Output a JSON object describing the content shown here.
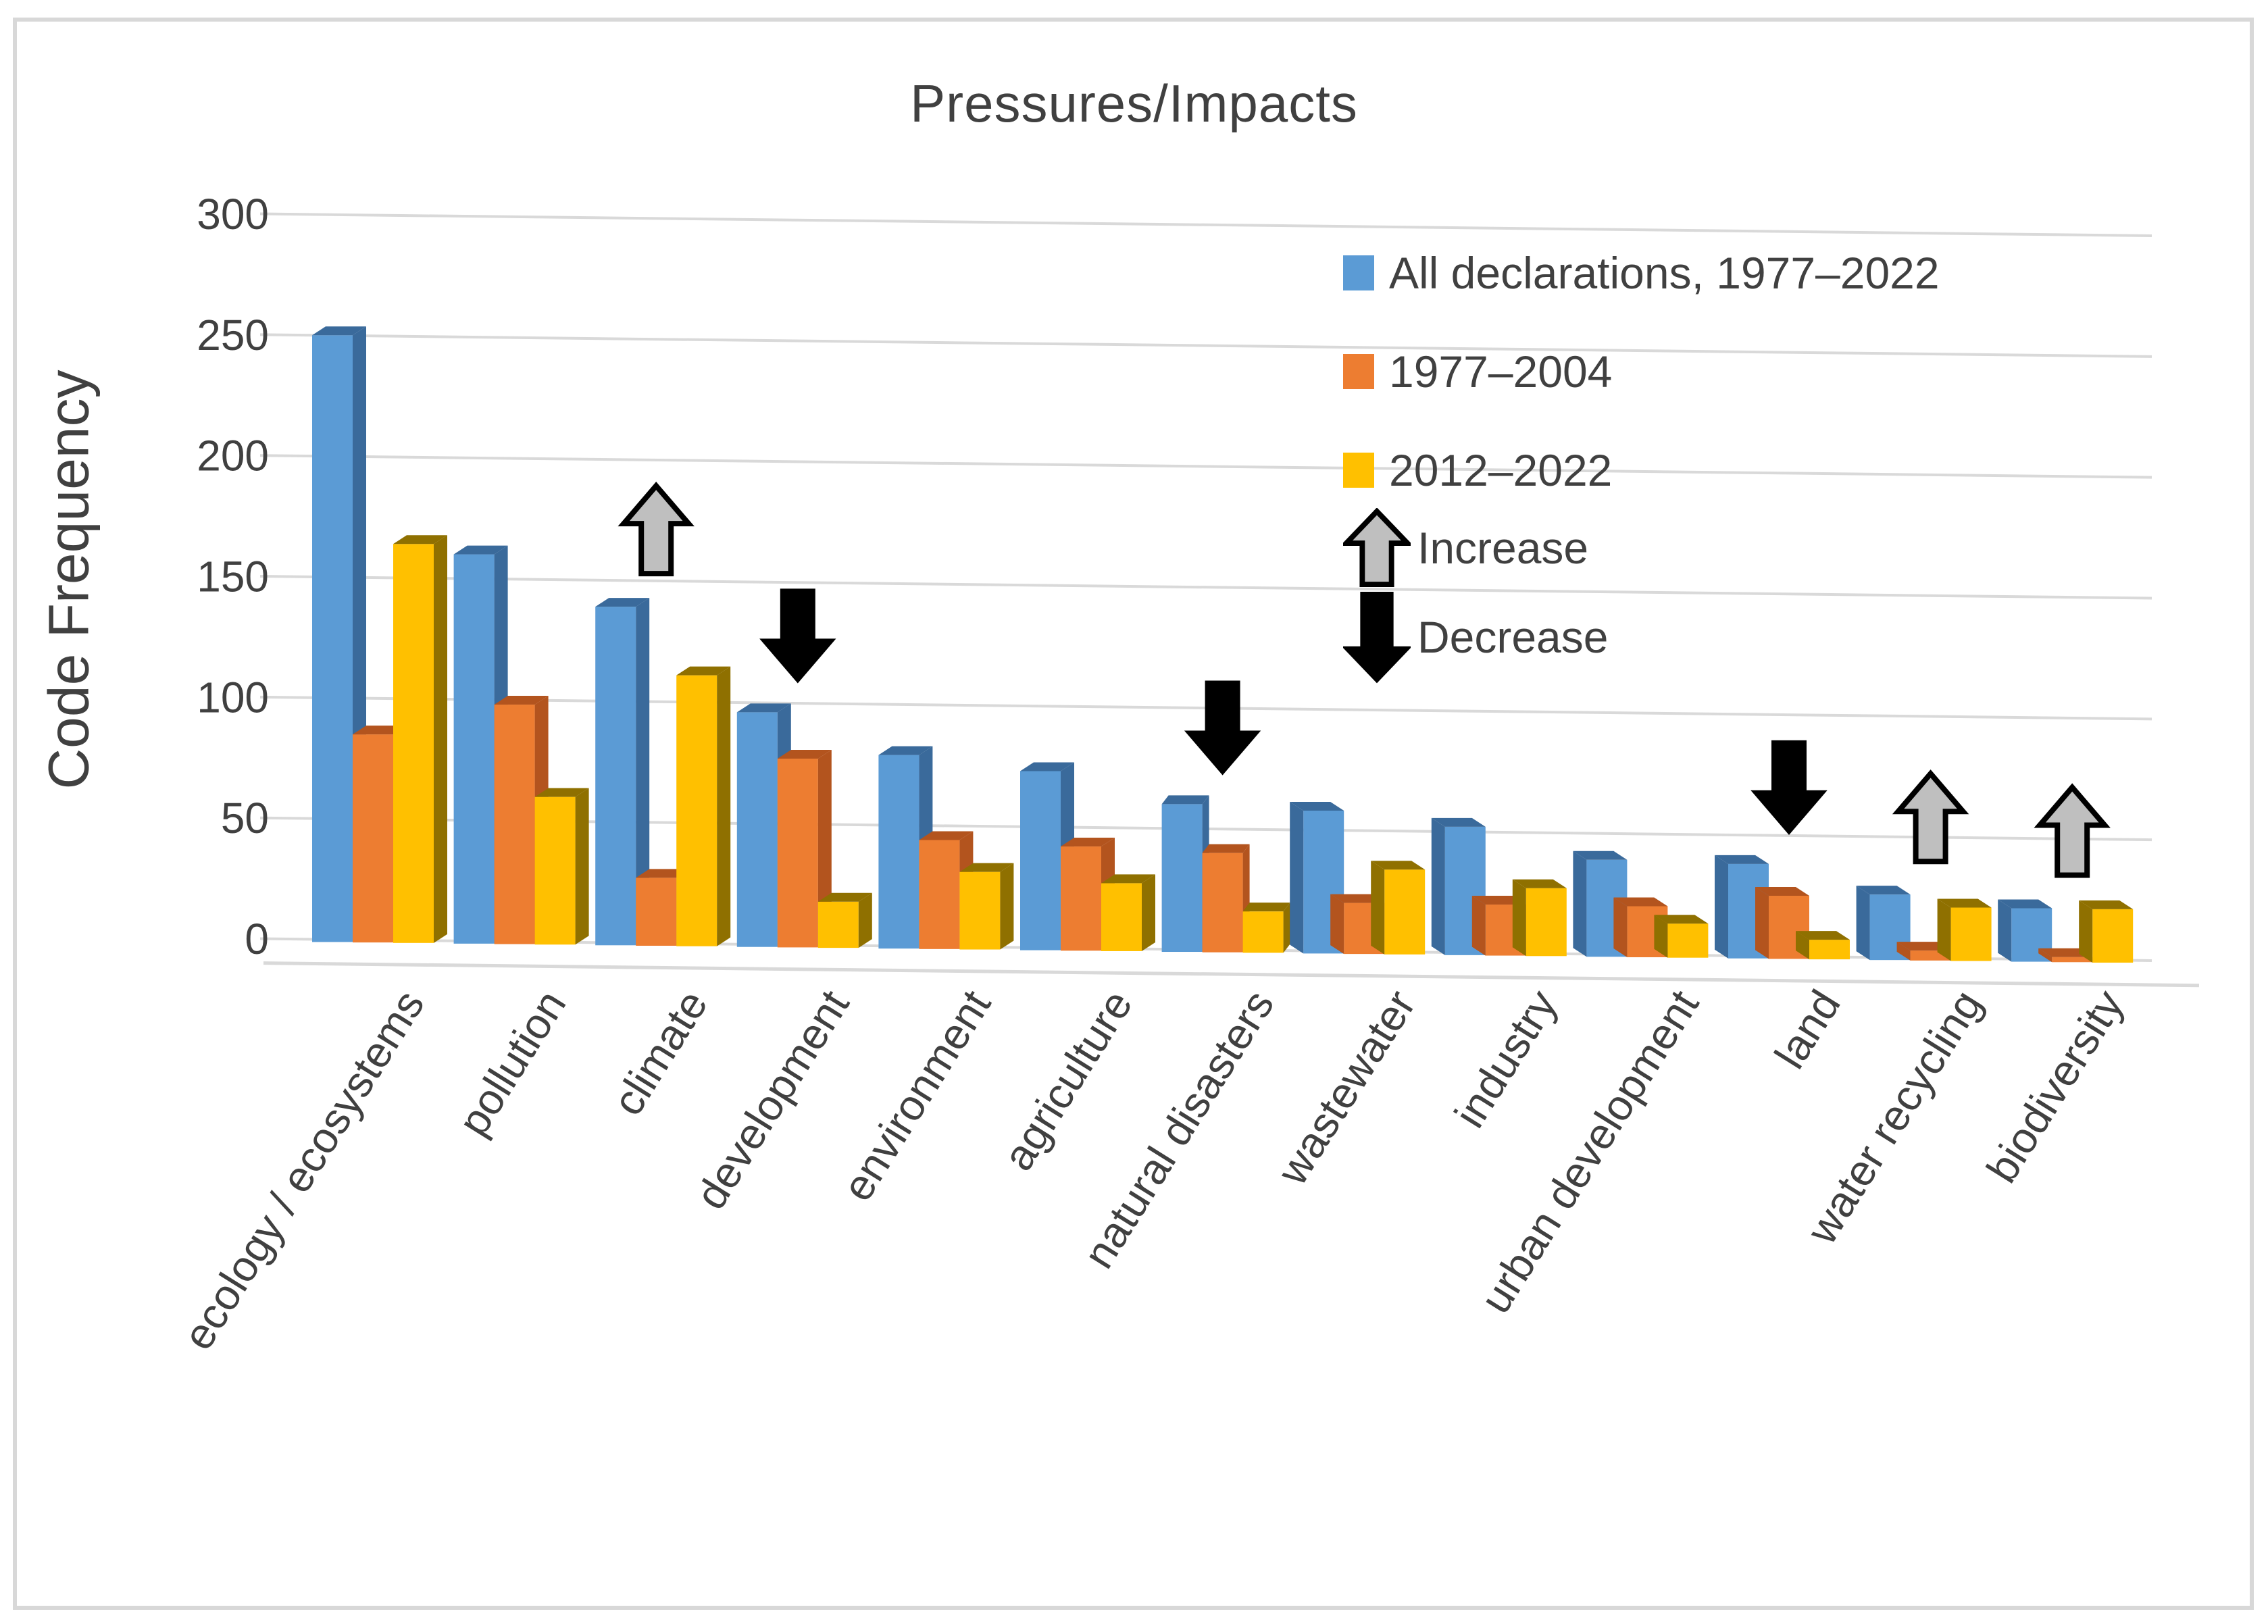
{
  "title": "Pressures/Impacts",
  "y_axis": {
    "label": "Code Frequency",
    "tick_labels": [
      "300",
      "250",
      "200",
      "150",
      "100",
      "50",
      "0"
    ]
  },
  "legend": {
    "items": [
      {
        "label": "All declarations, 1977–2022",
        "color": "#5B9BD5"
      },
      {
        "label": "1977–2004",
        "color": "#ED7D31"
      },
      {
        "label": "2012–2022",
        "color": "#FFC000"
      }
    ],
    "increase_label": "Increase",
    "decrease_label": "Decrease"
  },
  "colors": {
    "blue_front": "#5B9BD5",
    "blue_side": "#3A6A9B",
    "orange_front": "#ED7D31",
    "orange_side": "#B3541E",
    "yellow_front": "#FFC000",
    "yellow_side": "#8F7000",
    "gridline": "#D9D9D9",
    "text": "#404040",
    "increase_arrow_fill": "#BFBFBF",
    "decrease_arrow_fill": "#000000"
  },
  "chart_data": {
    "type": "bar",
    "title": "Pressures/Impacts",
    "xlabel": "",
    "ylabel": "Code Frequency",
    "ylim": [
      0,
      300
    ],
    "yticks": [
      300,
      250,
      200,
      150,
      100,
      50,
      0
    ],
    "grid": true,
    "legend_position": "upper right",
    "categories": [
      "ecology / ecosystems",
      "pollution",
      "climate",
      "development",
      "environment",
      "agriculture",
      "natural disasters",
      "wastewater",
      "industry",
      "urban development",
      "land",
      "water recycling",
      "biodiversity"
    ],
    "series": [
      {
        "name": "All declarations, 1977–2022",
        "color": "#5B9BD5",
        "side_color": "#3A6A9B",
        "values": [
          250,
          160,
          139,
          96,
          79,
          73,
          60,
          58,
          52,
          39,
          38,
          26,
          21
        ]
      },
      {
        "name": "1977–2004",
        "color": "#ED7D31",
        "side_color": "#B3541E",
        "values": [
          85,
          98,
          27,
          77,
          44,
          42,
          40,
          20,
          20,
          20,
          25,
          3,
          1
        ]
      },
      {
        "name": "2012–2022",
        "color": "#FFC000",
        "side_color": "#8F7000",
        "values": [
          164,
          60,
          111,
          18,
          31,
          27,
          16,
          34,
          27,
          13,
          7,
          21,
          21
        ]
      }
    ],
    "trend_arrows": [
      {
        "category": "climate",
        "direction": "increase"
      },
      {
        "category": "development",
        "direction": "decrease"
      },
      {
        "category": "natural disasters",
        "direction": "decrease"
      },
      {
        "category": "land",
        "direction": "decrease"
      },
      {
        "category": "water recycling",
        "direction": "increase"
      },
      {
        "category": "biodiversity",
        "direction": "increase"
      }
    ]
  }
}
